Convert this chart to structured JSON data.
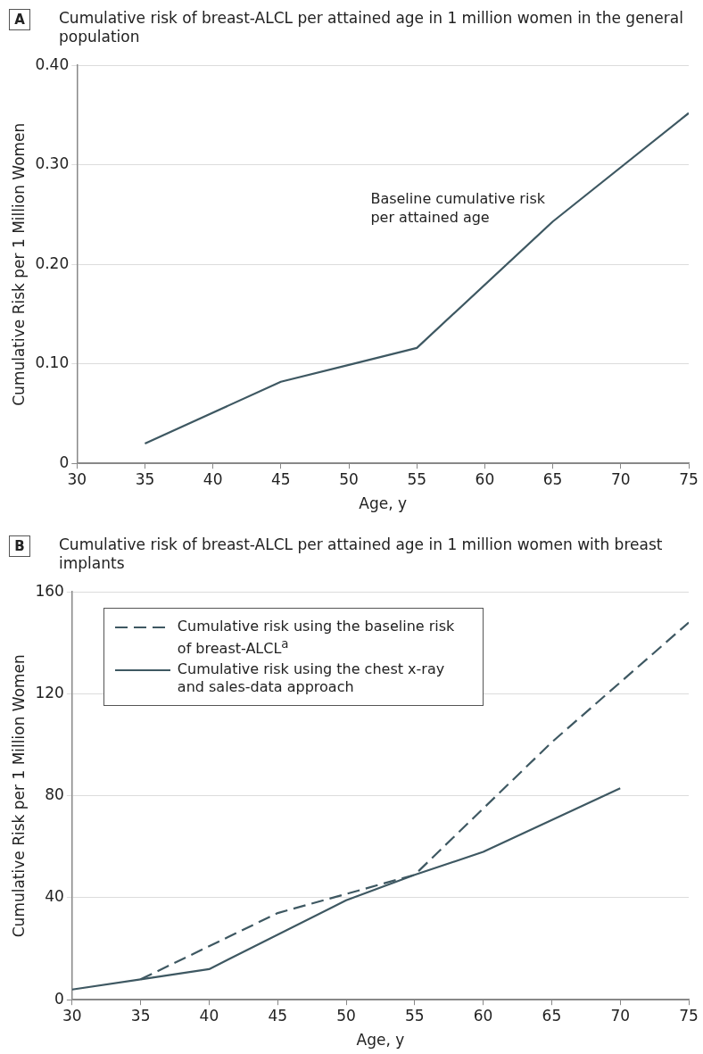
{
  "chart_data": [
    {
      "type": "line",
      "title": "Cumulative risk of breast-ALCL per attained age in 1 million women in the general population",
      "xlabel": "Age, y",
      "ylabel": "Cumulative Risk per 1 Million Women",
      "x": [
        35,
        45,
        50,
        55,
        65,
        75
      ],
      "series": [
        {
          "color": "#3e5862",
          "values": [
            0.02,
            0.082,
            0.099,
            0.116,
            0.243,
            0.352
          ]
        }
      ],
      "xlim": [
        30,
        75
      ],
      "xticks": [
        30,
        35,
        40,
        45,
        50,
        55,
        60,
        65,
        70,
        75
      ],
      "ylim": [
        0,
        0.4
      ],
      "yticks": [
        {
          "value": 0,
          "label": "0"
        },
        {
          "value": 0.1,
          "label": "0.10"
        },
        {
          "value": 0.2,
          "label": "0.20"
        },
        {
          "value": 0.3,
          "label": "0.30"
        },
        {
          "value": 0.4,
          "label": "0.40"
        }
      ],
      "grid": "y",
      "legend": false,
      "line_style": "solid",
      "marker": "none",
      "annotations": [
        "A",
        "Baseline cumulative risk per attained age"
      ]
    },
    {
      "type": "line",
      "title": "Cumulative risk of breast-ALCL per attained age in 1 million women with breast implants",
      "xlabel": "Age, y",
      "ylabel": "Cumulative Risk per 1 Million Women",
      "series": [
        {
          "name": "Cumulative risk using the baseline risk of breast-ALCL$^{a}$",
          "color": "#3e5862",
          "line_style": "dashed",
          "x": [
            35,
            45,
            55,
            65,
            75
          ],
          "values": [
            8,
            34,
            49,
            101,
            148
          ]
        },
        {
          "name": "Cumulative risk using the chest x-ray and sales-data approach",
          "color": "#3e5862",
          "line_style": "solid",
          "x": [
            30,
            35,
            40,
            50,
            55,
            60,
            70
          ],
          "values": [
            4,
            8,
            12,
            39,
            49,
            58,
            83
          ]
        }
      ],
      "xlim": [
        30,
        75
      ],
      "xticks": [
        30,
        35,
        40,
        45,
        50,
        55,
        60,
        65,
        70,
        75
      ],
      "ylim": [
        0,
        160
      ],
      "yticks": [
        0,
        40,
        80,
        120,
        160
      ],
      "grid": "y",
      "legend": "top left",
      "marker": "none",
      "annotations": [
        "B"
      ]
    }
  ]
}
